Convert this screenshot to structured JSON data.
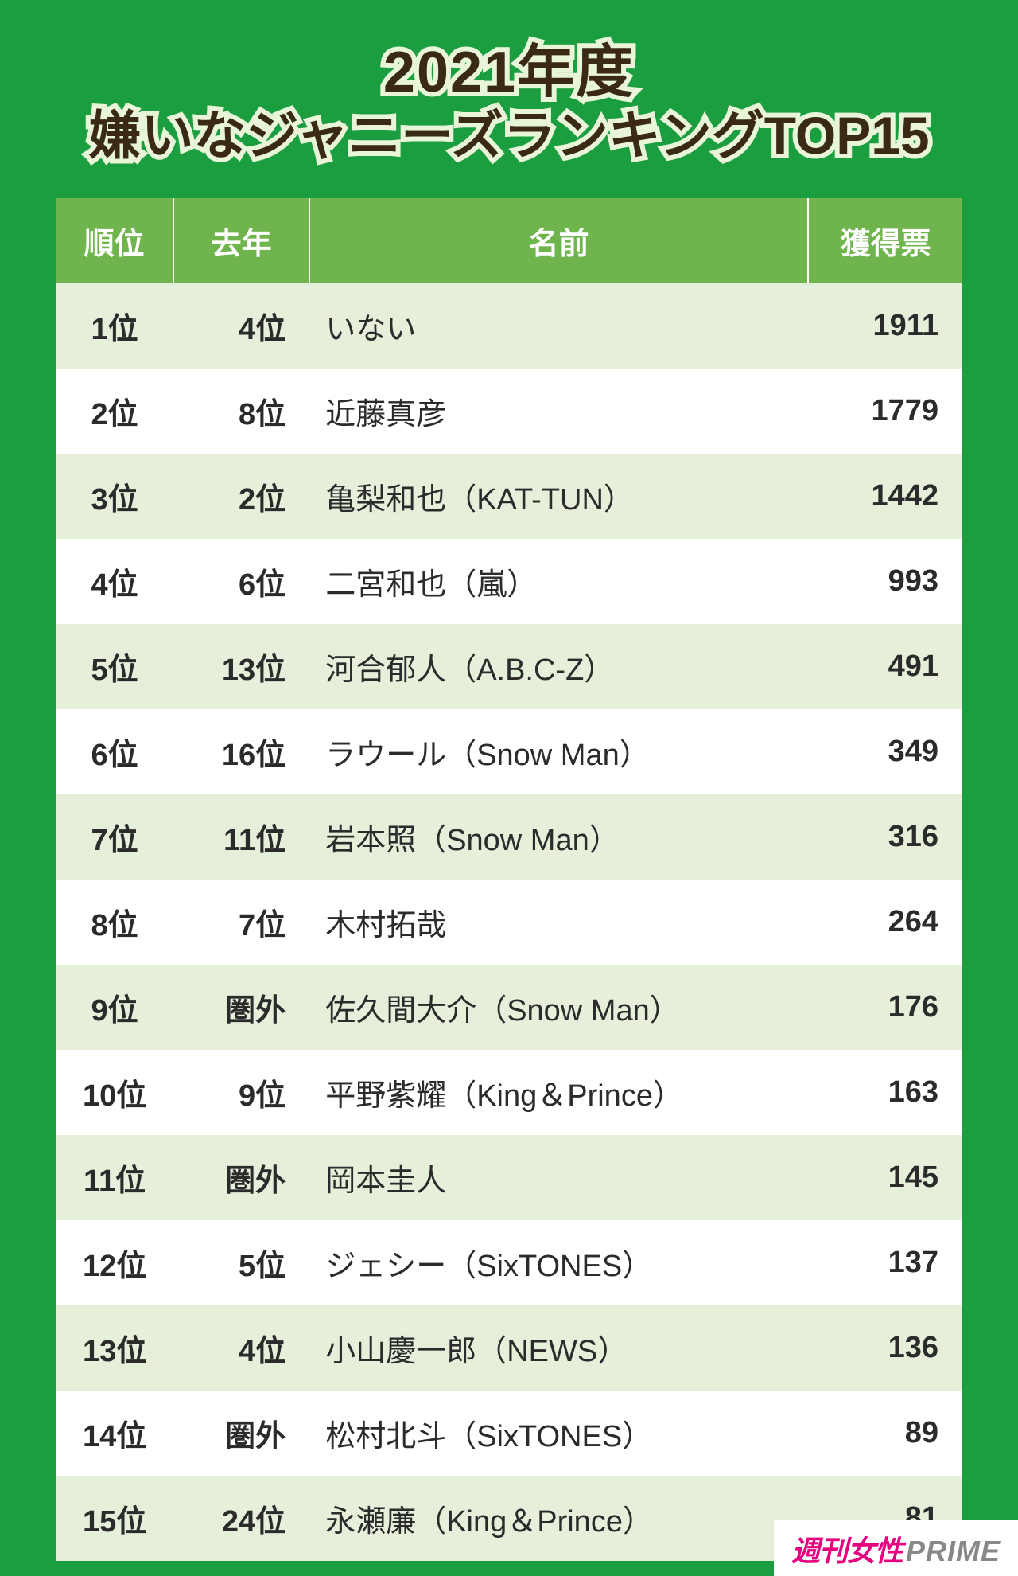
{
  "title": {
    "line1": "2021年度",
    "line2": "嫌いなジャニーズランキングTOP15",
    "text_color": "#3a2a14",
    "stroke_color": "#e8f5d8",
    "fontsize_line1": 72,
    "fontsize_line2": 66
  },
  "background_color": "#1b9e3f",
  "table": {
    "type": "table",
    "header_bg": "#6fb44d",
    "header_text_color": "#ffffff",
    "header_fontsize": 38,
    "row_bg_odd": "#e5efda",
    "row_bg_even": "#ffffff",
    "cell_fontsize": 38,
    "text_color": "#2b2b2b",
    "columns": [
      {
        "key": "rank",
        "label": "順位",
        "width": "13%",
        "align": "center"
      },
      {
        "key": "last",
        "label": "去年",
        "width": "15%",
        "align": "right"
      },
      {
        "key": "name",
        "label": "名前",
        "width": "55%",
        "align": "left"
      },
      {
        "key": "votes",
        "label": "獲得票",
        "width": "17%",
        "align": "right"
      }
    ],
    "rows": [
      {
        "rank": "1位",
        "last": "4位",
        "name": "いない",
        "votes": "1911"
      },
      {
        "rank": "2位",
        "last": "8位",
        "name": "近藤真彦",
        "votes": "1779"
      },
      {
        "rank": "3位",
        "last": "2位",
        "name": "亀梨和也（KAT-TUN）",
        "votes": "1442"
      },
      {
        "rank": "4位",
        "last": "6位",
        "name": "二宮和也（嵐）",
        "votes": "993"
      },
      {
        "rank": "5位",
        "last": "13位",
        "name": "河合郁人（A.B.C-Z）",
        "votes": "491"
      },
      {
        "rank": "6位",
        "last": "16位",
        "name": "ラウール（Snow Man）",
        "votes": "349"
      },
      {
        "rank": "7位",
        "last": "11位",
        "name": "岩本照（Snow Man）",
        "votes": "316"
      },
      {
        "rank": "8位",
        "last": "7位",
        "name": "木村拓哉",
        "votes": "264"
      },
      {
        "rank": "9位",
        "last": "圏外",
        "name": "佐久間大介（Snow Man）",
        "votes": "176"
      },
      {
        "rank": "10位",
        "last": "9位",
        "name": "平野紫耀（King＆Prince）",
        "votes": "163"
      },
      {
        "rank": "11位",
        "last": "圏外",
        "name": "岡本圭人",
        "votes": "145"
      },
      {
        "rank": "12位",
        "last": "5位",
        "name": "ジェシー（SixTONES）",
        "votes": "137"
      },
      {
        "rank": "13位",
        "last": "4位",
        "name": "小山慶一郎（NEWS）",
        "votes": "136"
      },
      {
        "rank": "14位",
        "last": "圏外",
        "name": "松村北斗（SixTONES）",
        "votes": "89"
      },
      {
        "rank": "15位",
        "last": "24位",
        "name": "永瀬廉（King＆Prince）",
        "votes": "81"
      }
    ]
  },
  "source": {
    "jp": "週刊女性",
    "en": "PRIME",
    "jp_color": "#e6007e",
    "en_color": "#888888",
    "bg": "#ffffff"
  }
}
